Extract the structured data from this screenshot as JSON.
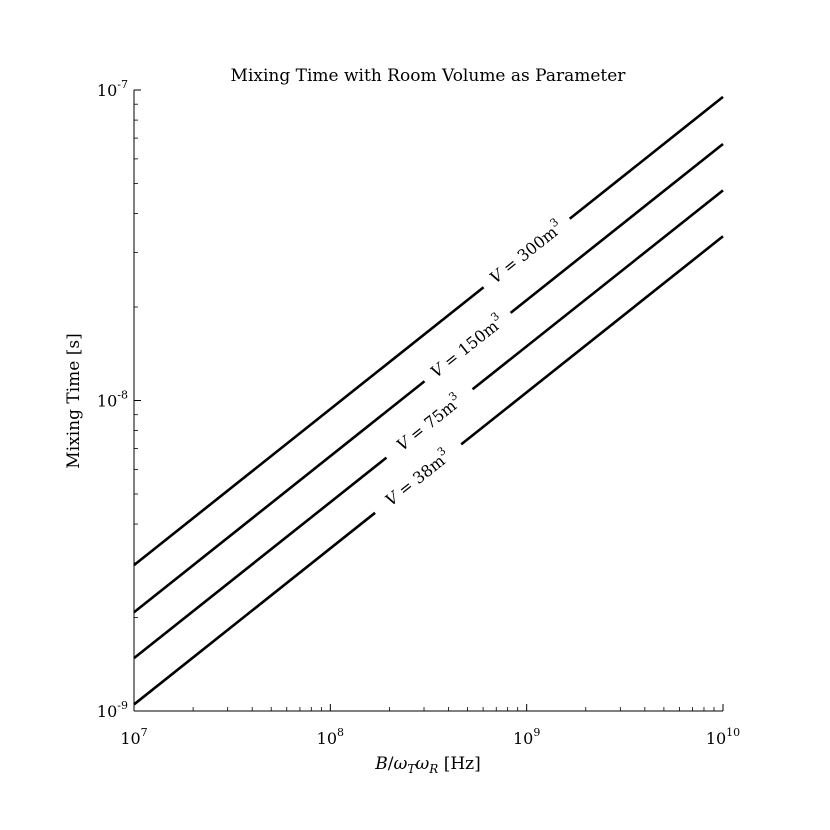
{
  "chart_data": {
    "type": "line",
    "title": "Mixing Time with Room Volume as Parameter",
    "xlabel": "B/ωTωR [Hz]",
    "ylabel": "Mixing Time [s]",
    "x_scale": "log",
    "y_scale": "log",
    "xlim": [
      10000000,
      10000000000
    ],
    "ylim": [
      1e-09,
      1e-07
    ],
    "grid": false,
    "legend": "none",
    "x_ticks": [
      {
        "value": 10000000,
        "base": "10",
        "exp": "7"
      },
      {
        "value": 100000000,
        "base": "10",
        "exp": "8"
      },
      {
        "value": 1000000000,
        "base": "10",
        "exp": "9"
      },
      {
        "value": 10000000000,
        "base": "10",
        "exp": "10"
      }
    ],
    "y_ticks": [
      {
        "value": 1e-09,
        "base": "10",
        "exp": "-9"
      },
      {
        "value": 1e-08,
        "base": "10",
        "exp": "-8"
      },
      {
        "value": 1e-07,
        "base": "10",
        "exp": "-7"
      }
    ],
    "series": [
      {
        "label_main": "V = 300m",
        "label_exp": "3",
        "x": [
          10000000,
          10000000000
        ],
        "y": [
          2.95e-09,
          9.5e-08
        ],
        "label_at_x": 1000000000
      },
      {
        "label_main": "V = 150m",
        "label_exp": "3",
        "x": [
          10000000,
          10000000000
        ],
        "y": [
          2.08e-09,
          6.7e-08
        ],
        "label_at_x": 500000000
      },
      {
        "label_main": "V = 75m",
        "label_exp": "3",
        "x": [
          10000000,
          10000000000
        ],
        "y": [
          1.48e-09,
          4.75e-08
        ],
        "label_at_x": 320000000
      },
      {
        "label_main": "V = 38m",
        "label_exp": "3",
        "x": [
          10000000,
          10000000000
        ],
        "y": [
          1.05e-09,
          3.38e-08
        ],
        "label_at_x": 280000000
      }
    ],
    "line_color": "#000000"
  }
}
